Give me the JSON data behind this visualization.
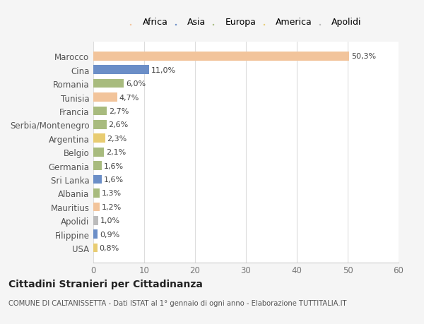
{
  "categories": [
    "Marocco",
    "Cina",
    "Romania",
    "Tunisia",
    "Francia",
    "Serbia/Montenegro",
    "Argentina",
    "Belgio",
    "Germania",
    "Sri Lanka",
    "Albania",
    "Mauritius",
    "Apolidi",
    "Filippine",
    "USA"
  ],
  "values": [
    50.3,
    11.0,
    6.0,
    4.7,
    2.7,
    2.6,
    2.3,
    2.1,
    1.6,
    1.6,
    1.3,
    1.2,
    1.0,
    0.9,
    0.8
  ],
  "labels": [
    "50,3%",
    "11,0%",
    "6,0%",
    "4,7%",
    "2,7%",
    "2,6%",
    "2,3%",
    "2,1%",
    "1,6%",
    "1,6%",
    "1,3%",
    "1,2%",
    "1,0%",
    "0,9%",
    "0,8%"
  ],
  "colors": [
    "#F2C49B",
    "#6B8EC7",
    "#A8BB7E",
    "#F2C49B",
    "#A8BB7E",
    "#A8BB7E",
    "#E8CC72",
    "#A8BB7E",
    "#A8BB7E",
    "#6B8EC7",
    "#A8BB7E",
    "#F2C49B",
    "#BBBBBB",
    "#6B8EC7",
    "#E8CC72"
  ],
  "legend_labels": [
    "Africa",
    "Asia",
    "Europa",
    "America",
    "Apolidi"
  ],
  "legend_colors": [
    "#F2C49B",
    "#6B8EC7",
    "#A8BB7E",
    "#E8CC72",
    "#BBBBBB"
  ],
  "xlim": [
    0,
    60
  ],
  "xticks": [
    0,
    10,
    20,
    30,
    40,
    50,
    60
  ],
  "title1": "Cittadini Stranieri per Cittadinanza",
  "title2": "COMUNE DI CALTANISSETTA - Dati ISTAT al 1° gennaio di ogni anno - Elaborazione TUTTITALIA.IT",
  "background_color": "#f5f5f5",
  "plot_background": "#ffffff"
}
